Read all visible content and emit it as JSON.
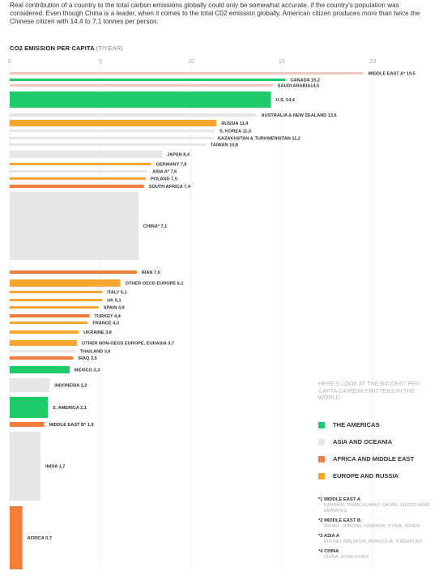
{
  "intro": "Real contribution of a country to the total carbon emissions globally could only be somewhat accurate, if the country's population was considered. Even though China is a leader, when it comes to the total C02 emission globally, American citizen produces more than twice the Chinese citizen with 14,4 to 7,1 tonnes per person.",
  "chart_title": "CO2 EMISSION PER CAPITA",
  "chart_unit": "(T/YEAR)",
  "colors": {
    "americas": "#1ecb68",
    "asia": "#e6e6e6",
    "africa": "#f47d3c",
    "europe": "#f8a532",
    "ghost": "#f7c7bf"
  },
  "chart_data": {
    "type": "bar",
    "orientation": "horizontal",
    "xlim": [
      0,
      20
    ],
    "x_ticks": [
      "0",
      "5",
      "10",
      "15",
      "20"
    ],
    "grid": true,
    "legend_position": "bottom-right",
    "bars": [
      {
        "label": "MIDDLE EAST A* 19,5",
        "value": 19.5,
        "group": "ghost"
      },
      {
        "label": "CANADA 15,2",
        "value": 15.2,
        "group": "americas"
      },
      {
        "label": "SAUDI ARABIA14,5",
        "value": 14.5,
        "group": "ghost"
      },
      {
        "label": "U.S. 14,4",
        "value": 14.4,
        "group": "americas"
      },
      {
        "label": "AUSTRALIA & NEW ZEALAND 13,6",
        "value": 13.6,
        "group": "asia"
      },
      {
        "label": "RUSSIA 11,4",
        "value": 11.4,
        "group": "europe"
      },
      {
        "label": "S. KOREA 11,3",
        "value": 11.3,
        "group": "asia"
      },
      {
        "label": "KAZAKHSTAN & TURKMENISTAN 11,2",
        "value": 11.2,
        "group": "asia"
      },
      {
        "label": "TAIWAN 10,8",
        "value": 10.8,
        "group": "asia"
      },
      {
        "label": "JAPAN 8,4",
        "value": 8.4,
        "group": "asia"
      },
      {
        "label": "GERMANY 7,8",
        "value": 7.8,
        "group": "europe"
      },
      {
        "label": "ASIA A* 7,6",
        "value": 7.6,
        "group": "asia"
      },
      {
        "label": "POLAND 7,5",
        "value": 7.5,
        "group": "europe"
      },
      {
        "label": "SOUTH AFRICA 7,4",
        "value": 7.4,
        "group": "africa"
      },
      {
        "label": "CHINA* 7,1",
        "value": 7.1,
        "group": "asia"
      },
      {
        "label": "IRAN 7,0",
        "value": 7.0,
        "group": "africa"
      },
      {
        "label": "OTHER OECD EUROPE 6,1",
        "value": 6.1,
        "group": "europe"
      },
      {
        "label": "ITALY 5,1",
        "value": 5.1,
        "group": "europe"
      },
      {
        "label": "UK 5,1",
        "value": 5.1,
        "group": "europe"
      },
      {
        "label": "SPAIN 4,9",
        "value": 4.9,
        "group": "europe"
      },
      {
        "label": "TURKEY 4,4",
        "value": 4.4,
        "group": "africa"
      },
      {
        "label": "FRANCE 4,3",
        "value": 4.3,
        "group": "europe"
      },
      {
        "label": "UKRAINE 3,8",
        "value": 3.8,
        "group": "europe"
      },
      {
        "label": "OTHER NON-OECD EUROPE, EURASIA 3,7",
        "value": 3.7,
        "group": "europe"
      },
      {
        "label": "THAILAND 3,6",
        "value": 3.6,
        "group": "asia"
      },
      {
        "label": "IRAQ 3,5",
        "value": 3.5,
        "group": "africa"
      },
      {
        "label": "MEXICO 3,3",
        "value": 3.3,
        "group": "americas"
      },
      {
        "label": "INDONESIA 2,2",
        "value": 2.2,
        "group": "asia"
      },
      {
        "label": "S. AMERICA 2,1",
        "value": 2.1,
        "group": "americas"
      },
      {
        "label": "MIDDLE EAST B* 1,9",
        "value": 1.9,
        "group": "africa"
      },
      {
        "label": "INDIA 1,7",
        "value": 1.7,
        "group": "asia"
      },
      {
        "label": "AFRICA 0,7",
        "value": 0.7,
        "group": "africa"
      }
    ]
  },
  "legend": {
    "heading": "HERE'S LOOK AT THE BIGGEST PER-CAPTA CARBON EMITTERS IN THE WORLD:",
    "items": [
      {
        "label": "THE AMERICAS",
        "group": "americas"
      },
      {
        "label": "ASIA AND OCEANIA",
        "group": "asia"
      },
      {
        "label": "AFRICA AND MIDDLE EAST",
        "group": "africa"
      },
      {
        "label": "EUROPE AND RUSSIA",
        "group": "europe"
      }
    ]
  },
  "notes": [
    {
      "title": "*1 MIDDLE EAST A",
      "text": "BAHRAIN, OMAN, KUWAIT, QATAR, UNITED ARAB EMIRATES"
    },
    {
      "title": "*2 MIDDLE EAST B",
      "text": "ISRAEL, JORDAN, LEBANON, SYRIA, YEMEN"
    },
    {
      "title": "*3 ASIA A",
      "text": "BRUNEI, MALAYSIA, MONGOLIA, SINGAPORE"
    },
    {
      "title": "*4 CHINA",
      "text": "CHINA, HONG KONG"
    }
  ]
}
